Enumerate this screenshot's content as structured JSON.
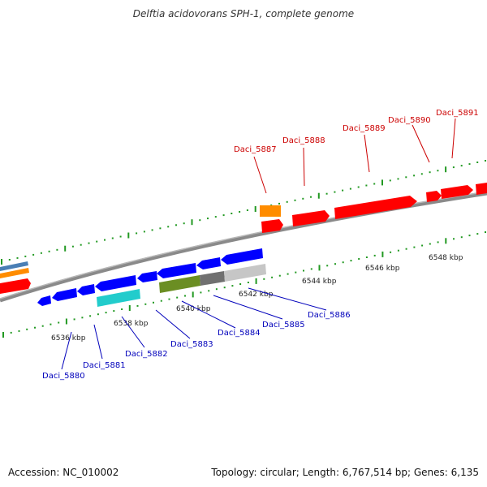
{
  "title": "Delftia acidovorans SPH-1, complete genome",
  "footer": {
    "accession": "Accession: NC_010002",
    "topology": "Topology: circular; Length: 6,767,514 bp; Genes: 6,135"
  },
  "colors": {
    "background": "#ffffff",
    "forward_label": "#cc0000",
    "reverse_label": "#0000bb",
    "forward_gene": "#ff0000",
    "reverse_gene": "#0000ff",
    "backbone": "#8a8a8a",
    "tick": "#229922"
  },
  "scale_labels": [
    {
      "text": "6536 kbp"
    },
    {
      "text": "6538 kbp"
    },
    {
      "text": "6540 kbp"
    },
    {
      "text": "6542 kbp"
    },
    {
      "text": "6544 kbp"
    },
    {
      "text": "6546 kbp"
    },
    {
      "text": "6548 kbp"
    }
  ],
  "forward_labels": [
    "Daci_5887",
    "Daci_5888",
    "Daci_5889",
    "Daci_5890",
    "Daci_5891"
  ],
  "reverse_labels": [
    "Daci_5880",
    "Daci_5881",
    "Daci_5882",
    "Daci_5883",
    "Daci_5884",
    "Daci_5885",
    "Daci_5886"
  ]
}
